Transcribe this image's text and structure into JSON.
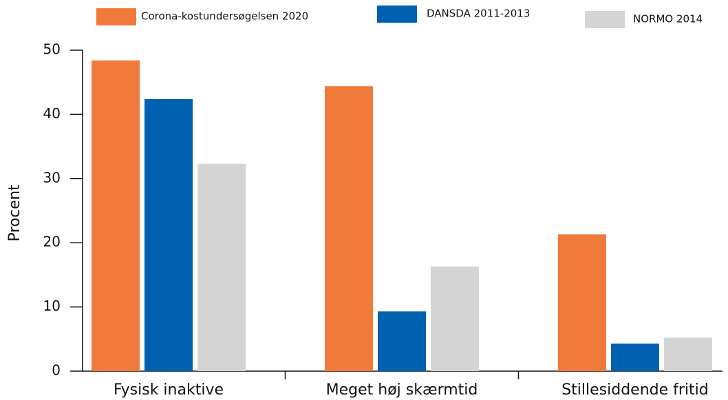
{
  "chart_data": {
    "type": "bar",
    "y_label": "Procent",
    "categories": [
      "Fysisk inaktive",
      "Meget høj skærmtid",
      "Stillesiddende fritid"
    ],
    "series": [
      {
        "name": "Corona-kostundersøgelsen 2020",
        "color": "#f07a3a",
        "values": [
          48.4,
          44.4,
          21.3
        ]
      },
      {
        "name": "DANSDA 2011-2013",
        "color": "#0061b0",
        "values": [
          42.4,
          9.3,
          4.3
        ]
      },
      {
        "name": "NORMO 2014",
        "color": "#d4d4d4",
        "values": [
          32.3,
          16.3,
          5.2
        ]
      }
    ],
    "ylim": [
      0,
      50
    ],
    "yticks": [
      0,
      10,
      20,
      30,
      40,
      50
    ],
    "grid": false,
    "legend": "top"
  }
}
